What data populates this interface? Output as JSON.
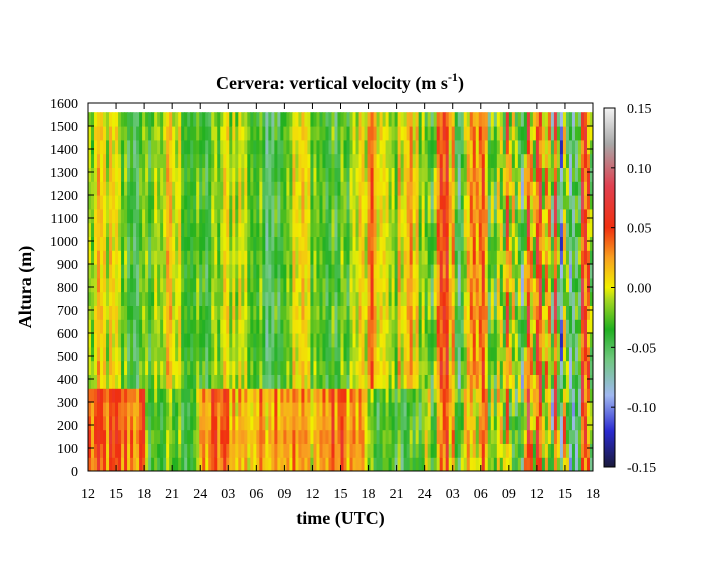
{
  "chart_data": {
    "type": "heatmap",
    "title": "Cervera: vertical velocity (m s",
    "title_exponent": "-1",
    "title_close": ")",
    "xlabel": "time (UTC)",
    "ylabel": "Altura (m)",
    "x_ticks": [
      "12",
      "15",
      "18",
      "21",
      "24",
      "03",
      "06",
      "09",
      "12",
      "15",
      "18",
      "21",
      "24",
      "03",
      "06",
      "09",
      "12",
      "15",
      "18"
    ],
    "x_range_hours": [
      0,
      54
    ],
    "y_ticks": [
      0,
      100,
      200,
      300,
      400,
      500,
      600,
      700,
      800,
      900,
      1000,
      1100,
      1200,
      1300,
      1400,
      1500,
      1600
    ],
    "ylim": [
      0,
      1600
    ],
    "data_top": 1560,
    "colorbar": {
      "ticks": [
        "0.15",
        "0.10",
        "0.05",
        "0.00",
        "-0.05",
        "-0.10",
        "-0.15"
      ],
      "vmin": -0.15,
      "vmax": 0.15,
      "stops": [
        {
          "v": -0.15,
          "color": "#1a1a3a"
        },
        {
          "v": -0.12,
          "color": "#2a2ad0"
        },
        {
          "v": -0.09,
          "color": "#a0b8f0"
        },
        {
          "v": -0.06,
          "color": "#70c880"
        },
        {
          "v": -0.035,
          "color": "#20b020"
        },
        {
          "v": -0.01,
          "color": "#a8d820"
        },
        {
          "v": 0.0,
          "color": "#f0f000"
        },
        {
          "v": 0.025,
          "color": "#f8a020"
        },
        {
          "v": 0.05,
          "color": "#f03010"
        },
        {
          "v": 0.085,
          "color": "#e04050"
        },
        {
          "v": 0.12,
          "color": "#a8a8a8"
        },
        {
          "v": 0.15,
          "color": "#f4f4f4"
        }
      ]
    },
    "grid": false,
    "legend": "colorbar-right"
  }
}
